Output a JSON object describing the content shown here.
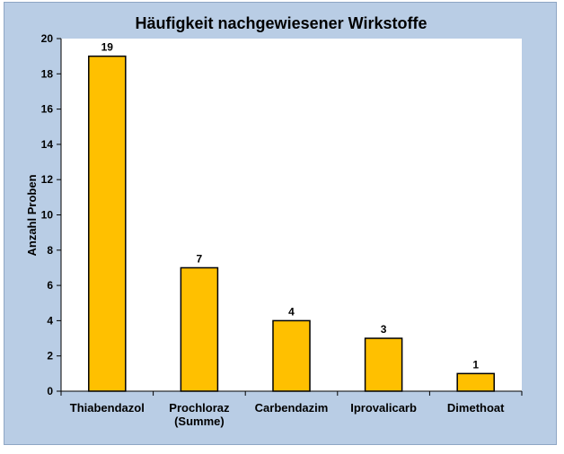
{
  "chart_data": {
    "type": "bar",
    "title": "Häufigkeit nachgewiesener Wirkstoffe",
    "ylabel": "Anzahl Proben",
    "xlabel": "",
    "categories": [
      [
        "Thiabendazol"
      ],
      [
        "Prochloraz",
        "(Summe)"
      ],
      [
        "Carbendazim"
      ],
      [
        "Iprovalicarb"
      ],
      [
        "Dimethoat"
      ]
    ],
    "values": [
      19,
      7,
      4,
      3,
      1
    ],
    "data_labels": [
      "19",
      "7",
      "4",
      "3",
      "1"
    ],
    "yticks": [
      "0",
      "2",
      "4",
      "6",
      "8",
      "10",
      "12",
      "14",
      "16",
      "18",
      "20"
    ],
    "ylim": [
      0,
      20
    ],
    "grid": false,
    "legend": "none",
    "colors": {
      "bar_fill": "#ffc000",
      "bar_stroke": "#000000",
      "plot_background": "#ffffff",
      "chart_background": "#b9cde5"
    }
  }
}
